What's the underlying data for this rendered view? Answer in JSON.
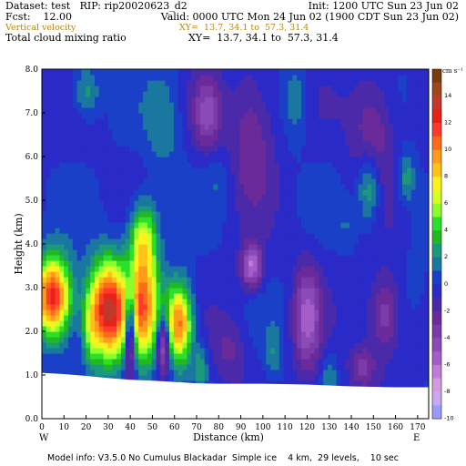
{
  "header": {
    "line1_left": "Dataset: test   RIP: rip20020623_d2",
    "line1_right": "Init: 1200 UTC Sun 23 Jun 02",
    "line2_left": "Fcst:    12.00",
    "line2_right": "Valid: 0000 UTC Mon 24 Jun 02 (1900 CDT Sun 23 Jun 02)",
    "line3_left": "Vertical velocity",
    "line3_right": "XY=  13.7, 34.1 to  57.3, 31.4",
    "line4_left": "Total cloud mixing ratio",
    "line4_right": "XY=  13.7, 34.1 to  57.3, 31.4"
  },
  "footer": {
    "model_info": "Model info: V3.5.0 No Cumulus Blackadar  Simple ice    4 km,  29 levels,    10 sec"
  },
  "colors": {
    "line3_text": "#b8860b",
    "ground": "#ffffff",
    "axis": "#000000"
  },
  "chart_data": {
    "type": "heatmap",
    "title": "Vertical velocity / Total cloud mixing ratio",
    "xlabel": "Distance (km)",
    "ylabel": "Height (km)",
    "xlim": [
      0,
      175
    ],
    "ylim": [
      0,
      8
    ],
    "x_ticks": [
      0,
      10,
      20,
      30,
      40,
      50,
      60,
      70,
      80,
      90,
      100,
      110,
      120,
      130,
      140,
      150,
      160,
      170
    ],
    "y_ticks": [
      "0.0",
      "1.0",
      "2.0",
      "3.0",
      "4.0",
      "5.0",
      "6.0",
      "7.0",
      "8.0"
    ],
    "x_end_labels": {
      "left": "W",
      "right": "E"
    },
    "colorbar": {
      "units": "cm s⁻¹",
      "tick_labels": [
        "14",
        "12",
        "10",
        "8",
        "6",
        "4",
        "2",
        "0",
        "-2",
        "-4",
        "-6",
        "-8",
        "-10"
      ],
      "colors": [
        "#7a3b10",
        "#a0461a",
        "#c0392b",
        "#e8211a",
        "#ff3a2a",
        "#ff6a1a",
        "#ff9a1a",
        "#ffc21a",
        "#fff21a",
        "#d6ff2a",
        "#8cff2a",
        "#2ae02a",
        "#22b822",
        "#1a9a7a",
        "#1a78a0",
        "#1a40c8",
        "#2a2ac8",
        "#4a2aa8",
        "#6a2a9a",
        "#7a3aa8",
        "#8a4ab8",
        "#a45cc8",
        "#c07ad8",
        "#d49ae0",
        "#c8a8ee",
        "#9a9aff"
      ]
    },
    "ground_height_km": [
      [
        0,
        1.05
      ],
      [
        10,
        1.02
      ],
      [
        20,
        0.98
      ],
      [
        30,
        0.93
      ],
      [
        40,
        0.89
      ],
      [
        50,
        0.87
      ],
      [
        60,
        0.84
      ],
      [
        70,
        0.81
      ],
      [
        80,
        0.8
      ],
      [
        100,
        0.8
      ],
      [
        120,
        0.78
      ],
      [
        140,
        0.74
      ],
      [
        160,
        0.72
      ],
      [
        175,
        0.72
      ]
    ],
    "features": [
      {
        "x": 5,
        "y": 2.8,
        "value": 13,
        "sx": 8,
        "sy": 0.9
      },
      {
        "x": 30,
        "y": 2.5,
        "value": 14,
        "sx": 9,
        "sy": 1.1
      },
      {
        "x": 46,
        "y": 2.6,
        "value": 10,
        "sx": 7,
        "sy": 1.3
      },
      {
        "x": 46,
        "y": 4.2,
        "value": 6,
        "sx": 6,
        "sy": 0.8
      },
      {
        "x": 62,
        "y": 2.2,
        "value": 11,
        "sx": 6,
        "sy": 0.9
      },
      {
        "x": 40,
        "y": 2.0,
        "value": -9,
        "sx": 2.5,
        "sy": 1.0
      },
      {
        "x": 55,
        "y": 1.7,
        "value": -7,
        "sx": 3,
        "sy": 0.7
      },
      {
        "x": 22,
        "y": 2.0,
        "value": 3,
        "sx": 3,
        "sy": 0.8
      },
      {
        "x": 20,
        "y": 7.5,
        "value": 3,
        "sx": 6,
        "sy": 0.6
      },
      {
        "x": 55,
        "y": 6.8,
        "value": 2,
        "sx": 8,
        "sy": 1.2
      },
      {
        "x": 80,
        "y": 5.5,
        "value": 1,
        "sx": 6,
        "sy": 0.7
      },
      {
        "x": 95,
        "y": 6.5,
        "value": -3,
        "sx": 10,
        "sy": 1.5
      },
      {
        "x": 75,
        "y": 7.0,
        "value": -4,
        "sx": 6,
        "sy": 0.8
      },
      {
        "x": 115,
        "y": 7.3,
        "value": 2,
        "sx": 5,
        "sy": 0.9
      },
      {
        "x": 150,
        "y": 6.6,
        "value": -3,
        "sx": 10,
        "sy": 1.3
      },
      {
        "x": 165,
        "y": 5.5,
        "value": 3,
        "sx": 4,
        "sy": 0.6
      },
      {
        "x": 148,
        "y": 5.3,
        "value": 4,
        "sx": 5,
        "sy": 0.8
      },
      {
        "x": 170,
        "y": 3.6,
        "value": 1,
        "sx": 4,
        "sy": 0.9
      },
      {
        "x": 95,
        "y": 3.5,
        "value": -6,
        "sx": 5,
        "sy": 0.5
      },
      {
        "x": 120,
        "y": 2.3,
        "value": -5,
        "sx": 6,
        "sy": 1.2
      },
      {
        "x": 155,
        "y": 2.4,
        "value": -4,
        "sx": 7,
        "sy": 0.9
      },
      {
        "x": 145,
        "y": 1.2,
        "value": -3,
        "sx": 6,
        "sy": 0.5
      },
      {
        "x": 85,
        "y": 1.6,
        "value": -2,
        "sx": 8,
        "sy": 0.8
      },
      {
        "x": 138,
        "y": 4.4,
        "value": 1,
        "sx": 4,
        "sy": 0.5
      },
      {
        "x": 105,
        "y": 1.5,
        "value": 2,
        "sx": 4,
        "sy": 0.6
      },
      {
        "x": 72,
        "y": 1.2,
        "value": 3,
        "sx": 3,
        "sy": 0.5
      },
      {
        "x": 130,
        "y": 1.0,
        "value": 2,
        "sx": 3,
        "sy": 0.5
      }
    ]
  }
}
